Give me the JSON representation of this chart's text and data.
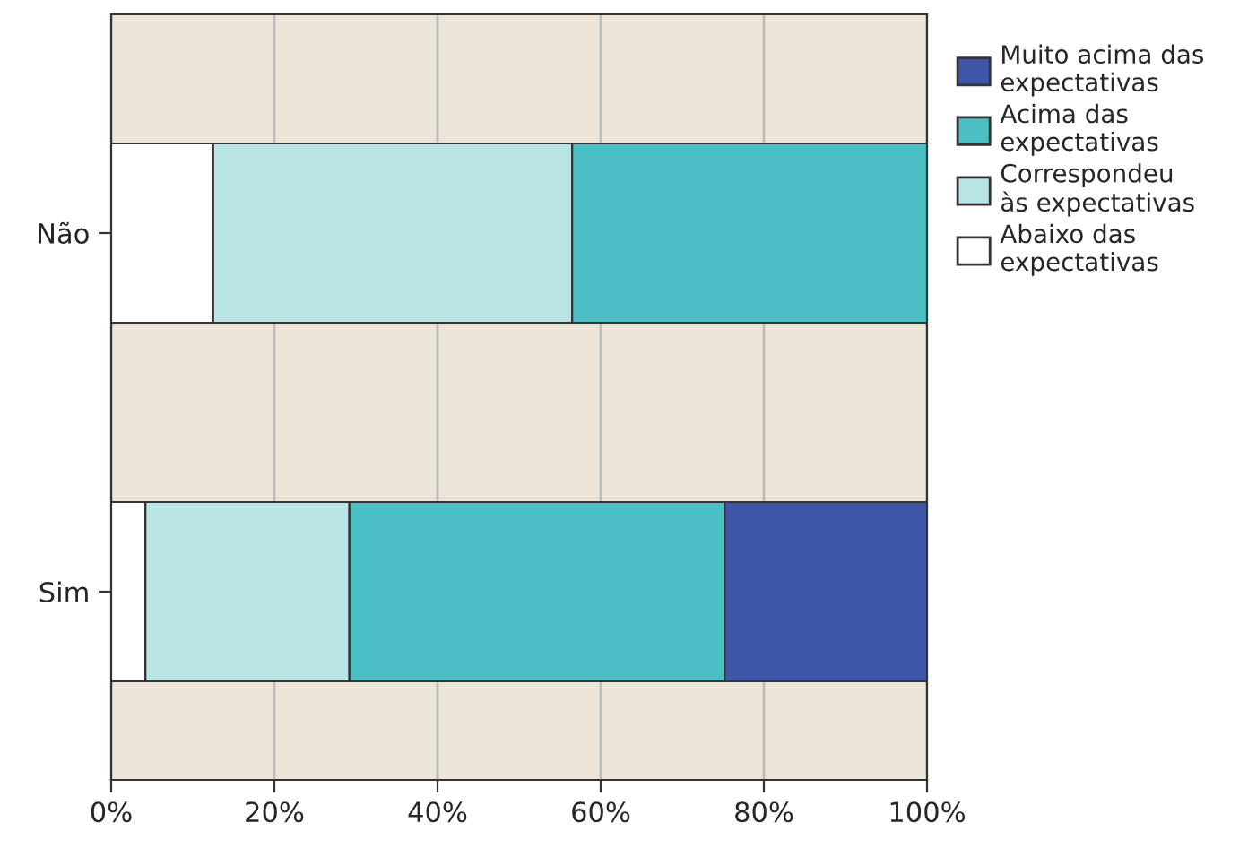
{
  "chart_data": {
    "type": "bar",
    "orientation": "horizontal",
    "stacked": true,
    "categories": [
      "Não",
      "Sim"
    ],
    "series": [
      {
        "name": "Abaixo das\nexpectativas",
        "color": "#ffffff",
        "values": [
          12.5,
          4.2
        ]
      },
      {
        "name": "Correspondeu\nàs expectativas",
        "color": "#b9e4e6",
        "values": [
          44.0,
          25.0
        ]
      },
      {
        "name": "Acima das\nexpectativas",
        "color": "#4cbfc4",
        "values": [
          43.5,
          46.0
        ]
      },
      {
        "name": "Muito acima das\nexpectativas",
        "color": "#3f56a8",
        "values": [
          null,
          24.8
        ]
      }
    ],
    "xlim": [
      0,
      100
    ],
    "xticks": [
      {
        "value": 0,
        "label": "0%"
      },
      {
        "value": 20,
        "label": "20%"
      },
      {
        "value": 40,
        "label": "40%"
      },
      {
        "value": 60,
        "label": "60%"
      },
      {
        "value": 80,
        "label": "80%"
      },
      {
        "value": 100,
        "label": "100%"
      }
    ],
    "grid": "x",
    "legend": "top right"
  }
}
